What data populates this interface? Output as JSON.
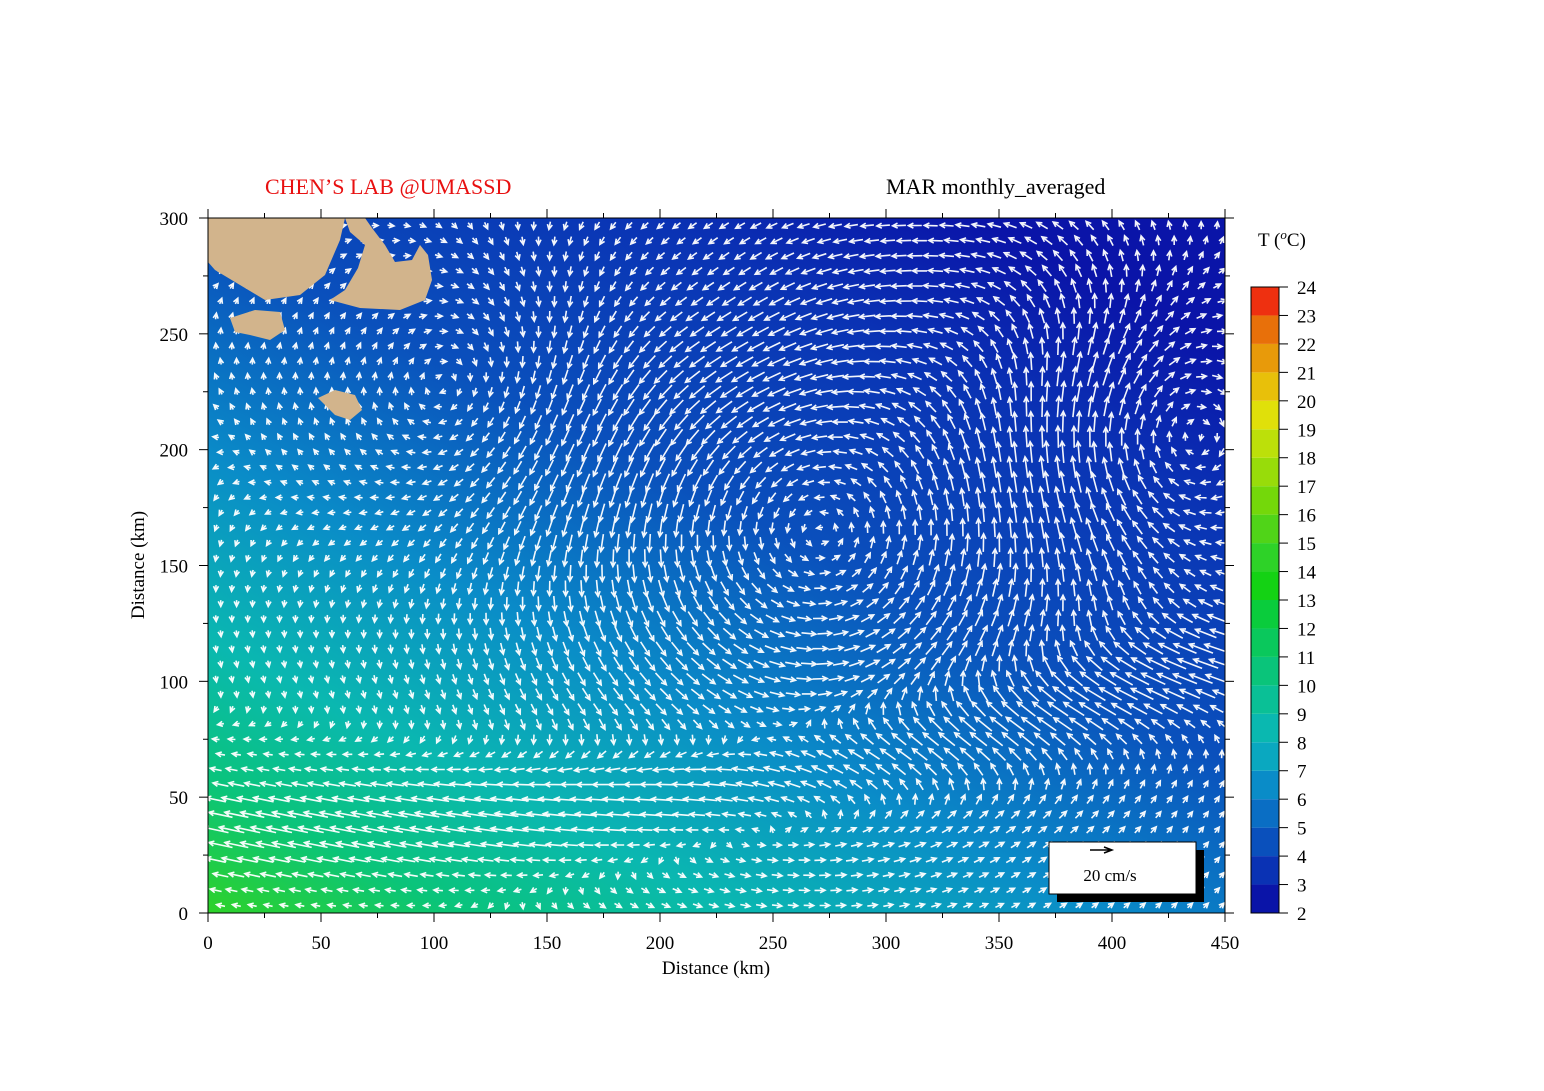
{
  "chart_data": {
    "type": "field",
    "annotation": "CHEN’S  LAB @UMASSD",
    "title": "MAR monthly_averaged",
    "x_label": "Distance (km)",
    "y_label": "Distance (km)",
    "xlim": [
      0,
      450
    ],
    "ylim": [
      0,
      300
    ],
    "xticks": [
      0,
      50,
      100,
      150,
      200,
      250,
      300,
      350,
      400,
      450
    ],
    "yticks": [
      0,
      50,
      100,
      150,
      200,
      250,
      300
    ],
    "colorbar": {
      "label_parts": [
        "T (",
        "o",
        "C)"
      ],
      "lim": [
        2,
        24
      ],
      "ticks": [
        2,
        3,
        4,
        5,
        6,
        7,
        8,
        9,
        10,
        11,
        12,
        13,
        14,
        15,
        16,
        17,
        18,
        19,
        20,
        21,
        22,
        23,
        24
      ],
      "colors": [
        "#0a14a8",
        "#0a32b4",
        "#0a50bc",
        "#0a6ec4",
        "#0a8cc8",
        "#0aa8c0",
        "#0ab8b0",
        "#0ac096",
        "#0ac47a",
        "#0ac85c",
        "#0acc3c",
        "#14d214",
        "#2ed228",
        "#50d418",
        "#74d80a",
        "#98dc0a",
        "#bce00a",
        "#e0e00a",
        "#e8c00a",
        "#e89a0a",
        "#e8700a",
        "#ee3010"
      ]
    },
    "scale_label": "20 cm/s"
  }
}
